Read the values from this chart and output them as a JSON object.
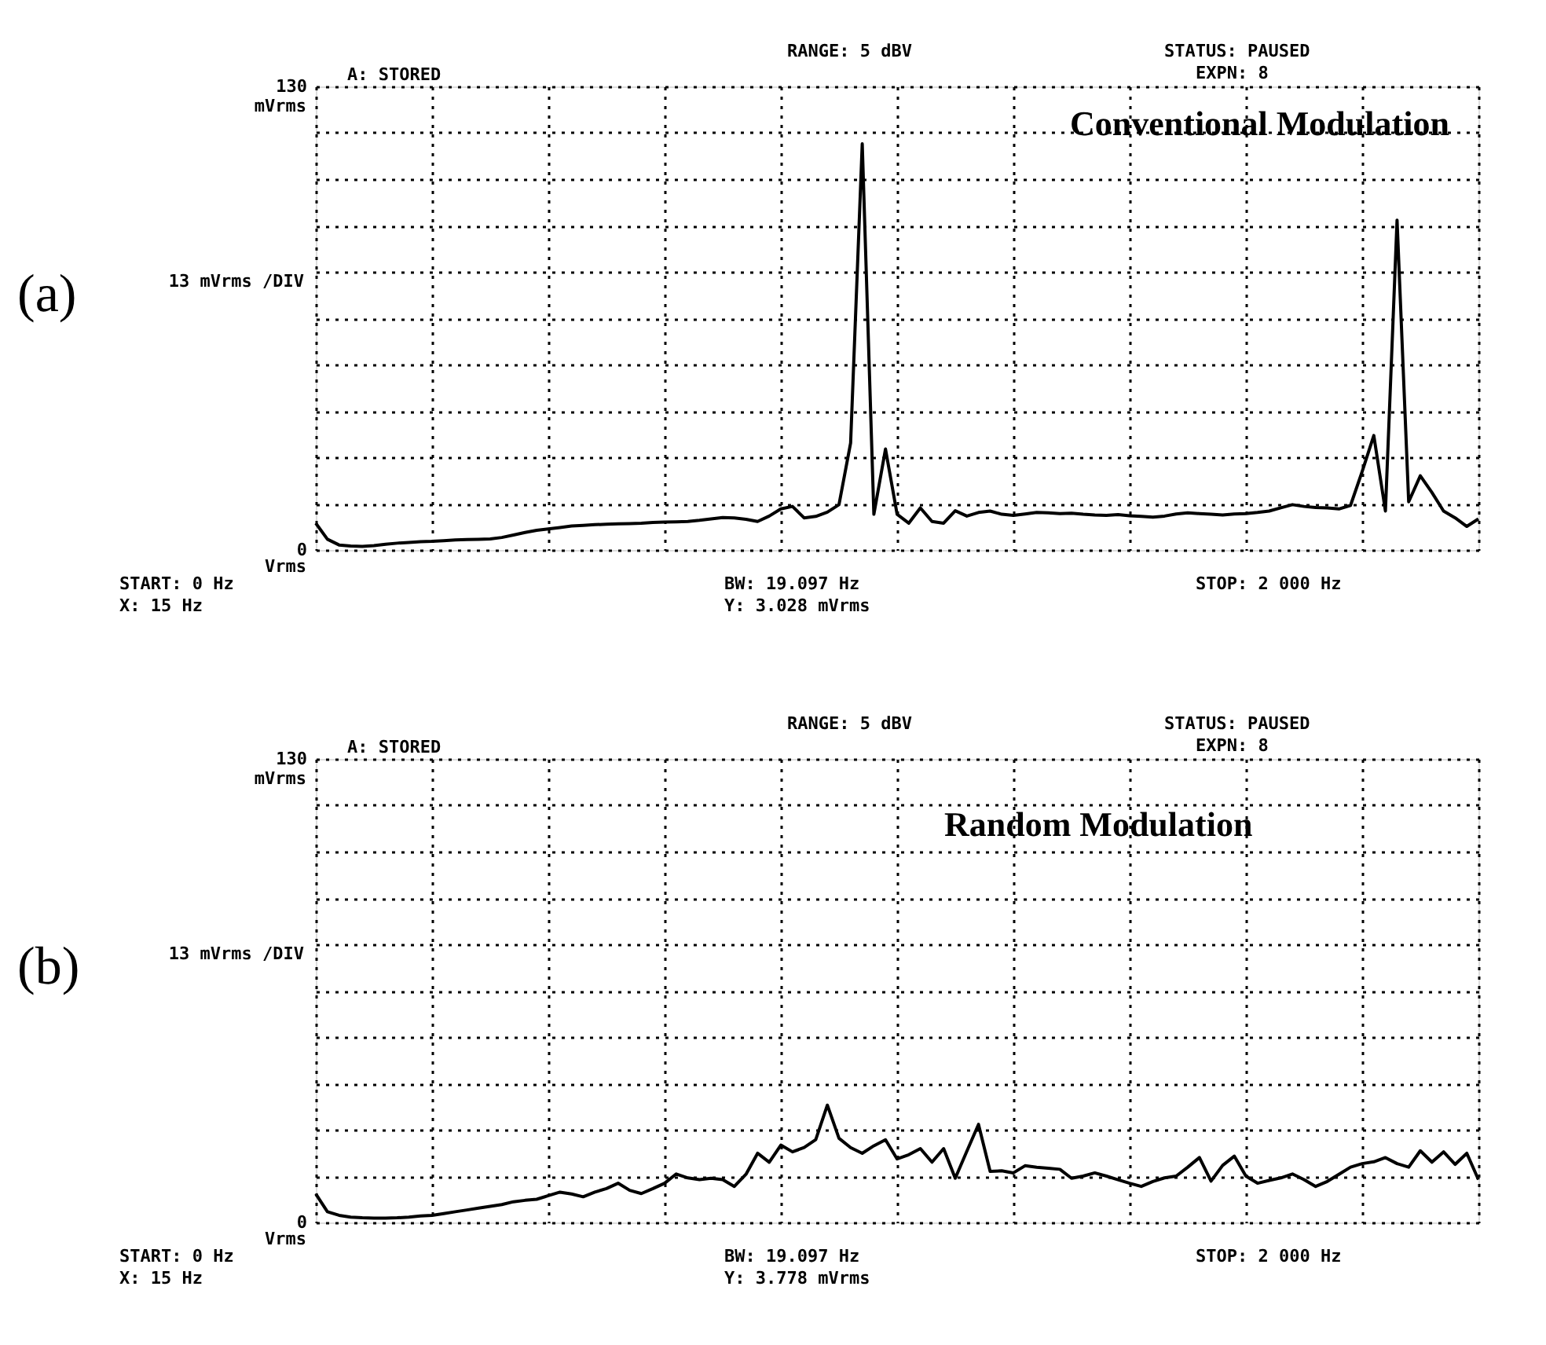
{
  "chart_data": [
    {
      "type": "line",
      "title": "Conventional Modulation",
      "ylabel": "13 mVrms /DIV",
      "annotations": [
        "(a)",
        "A: STORED",
        "RANGE: 5 dBV",
        "STATUS: PAUSED",
        "EXPN: 8",
        "START: 0 Hz",
        "BW: 19.097 Hz",
        "STOP: 2 000 Hz",
        "X: 15 Hz",
        "Y: 3.028 mVrms",
        "mVrms",
        "Vrms"
      ],
      "categories": [
        null,
        null,
        null,
        null,
        null,
        null,
        null,
        null,
        null,
        null,
        null,
        null,
        null,
        null,
        null,
        null,
        null,
        null,
        null,
        null,
        null,
        null,
        null,
        null,
        null,
        null,
        null,
        null,
        null,
        null,
        null,
        null,
        null,
        null,
        null,
        null,
        null,
        null,
        null,
        null,
        null,
        null,
        null,
        null,
        null,
        null,
        null,
        null,
        null,
        null,
        null,
        null,
        null,
        null,
        null,
        null,
        null,
        null,
        null,
        null,
        null,
        null,
        null,
        null,
        null,
        null,
        null,
        null,
        null,
        null,
        null,
        null,
        null,
        null,
        null,
        null,
        null,
        null,
        null,
        null,
        null,
        null,
        null,
        null,
        null,
        null,
        null,
        null,
        null,
        null,
        null,
        null,
        null,
        null,
        null,
        null,
        null,
        null,
        null,
        null,
        null
      ],
      "series": [
        {
          "color": "#000000",
          "values": [
            7.5,
            3,
            1.4,
            1.1,
            1.0,
            1.2,
            1.6,
            1.9,
            2.1,
            2.3,
            2.4,
            2.6,
            2.8,
            2.9,
            3.0,
            3.1,
            3.5,
            4.2,
            4.9,
            5.5,
            5.9,
            6.3,
            6.7,
            6.9,
            7.1,
            7.2,
            7.3,
            7.4,
            7.5,
            7.7,
            7.8,
            7.9,
            8.0,
            8.3,
            8.7,
            9.1,
            9.0,
            8.6,
            8.0,
            9.5,
            11.5,
            12.2,
            9.0,
            9.4,
            10.6,
            12.7,
            30,
            113.9,
            10,
            28.3,
            10,
            7.5,
            11.8,
            8.0,
            7.5,
            11.0,
            9.5,
            10.5,
            10.9,
            10.0,
            9.7,
            10.1,
            10.5,
            10.4,
            10.2,
            10.3,
            10.0,
            9.8,
            9.7,
            9.9,
            9.6,
            9.4,
            9.2,
            9.5,
            10.1,
            10.4,
            10.2,
            10.0,
            9.8,
            10.1,
            10.2,
            10.5,
            10.9,
            11.8,
            12.7,
            12.2,
            11.9,
            11.8,
            11.5,
            12.5,
            22,
            32.1,
            10.9,
            92.5,
            13.5,
            20.8,
            16.1,
            10.9,
            9.0,
            6.6,
            8.7
          ]
        }
      ],
      "ylim": [
        0,
        130
      ],
      "yticks": [
        {
          "value": 0,
          "label": "0"
        },
        {
          "value": 13,
          "label": null
        },
        {
          "value": 26,
          "label": null
        },
        {
          "value": 39,
          "label": null
        },
        {
          "value": 52,
          "label": null
        },
        {
          "value": 65,
          "label": null
        },
        {
          "value": 78,
          "label": null
        },
        {
          "value": 91,
          "label": null
        },
        {
          "value": 104,
          "label": null
        },
        {
          "value": 117,
          "label": null
        },
        {
          "value": 130,
          "label": "130"
        }
      ],
      "grid": true,
      "tick_labels": "y",
      "line_style": "solid"
    },
    {
      "type": "line",
      "title": "Random Modulation",
      "ylabel": "13 mVrms /DIV",
      "annotations": [
        "(b)",
        "A: STORED",
        "RANGE: 5 dBV",
        "STATUS: PAUSED",
        "EXPN: 8",
        "START: 0 Hz",
        "BW: 19.097 Hz",
        "STOP: 2 000 Hz",
        "X: 15 Hz",
        "Y: 3.778 mVrms",
        "mVrms",
        "Vrms"
      ],
      "categories": [
        null,
        null,
        null,
        null,
        null,
        null,
        null,
        null,
        null,
        null,
        null,
        null,
        null,
        null,
        null,
        null,
        null,
        null,
        null,
        null,
        null,
        null,
        null,
        null,
        null,
        null,
        null,
        null,
        null,
        null,
        null,
        null,
        null,
        null,
        null,
        null,
        null,
        null,
        null,
        null,
        null,
        null,
        null,
        null,
        null,
        null,
        null,
        null,
        null,
        null,
        null,
        null,
        null,
        null,
        null,
        null,
        null,
        null,
        null,
        null,
        null,
        null,
        null,
        null,
        null,
        null,
        null,
        null,
        null,
        null,
        null,
        null,
        null,
        null,
        null,
        null,
        null,
        null,
        null,
        null,
        null,
        null,
        null,
        null,
        null,
        null,
        null,
        null,
        null,
        null,
        null,
        null,
        null,
        null,
        null,
        null,
        null,
        null,
        null,
        null,
        null
      ],
      "series": [
        {
          "color": "#000000",
          "values": [
            8,
            3,
            2,
            1.5,
            1.3,
            1.2,
            1.2,
            1.3,
            1.5,
            1.8,
            2.0,
            2.5,
            3.0,
            3.5,
            4.0,
            4.5,
            5.0,
            5.8,
            6.2,
            6.5,
            7.5,
            8.5,
            8.0,
            7.2,
            8.5,
            9.5,
            11.0,
            9.0,
            8.1,
            9.5,
            11.0,
            13.6,
            12.5,
            12.0,
            12.4,
            12.0,
            10.1,
            13.5,
            19.4,
            16.9,
            21.7,
            19.8,
            21.0,
            23.2,
            32.9,
            23.6,
            21.0,
            19.4,
            21.5,
            23.2,
            17.8,
            19.0,
            20.7,
            16.9,
            20.7,
            12.4,
            20.0,
            27.5,
            14.3,
            14.5,
            13.9,
            15.9,
            15.5,
            15.2,
            14.9,
            12.4,
            13.0,
            13.9,
            13.0,
            12.0,
            11.0,
            10.1,
            11.5,
            12.5,
            13.0,
            15.5,
            18.2,
            11.6,
            16.0,
            18.6,
            13.0,
            11.0,
            11.8,
            12.5,
            13.6,
            12.0,
            10.1,
            11.5,
            13.5,
            15.5,
            16.5,
            17.0,
            18.2,
            16.5,
            15.5,
            20.1,
            16.9,
            19.8,
            16.3,
            19.4,
            12.0
          ]
        }
      ],
      "ylim": [
        0,
        130
      ],
      "yticks": [
        {
          "value": 0,
          "label": "0"
        },
        {
          "value": 13,
          "label": null
        },
        {
          "value": 26,
          "label": null
        },
        {
          "value": 39,
          "label": null
        },
        {
          "value": 52,
          "label": null
        },
        {
          "value": 65,
          "label": null
        },
        {
          "value": 78,
          "label": null
        },
        {
          "value": 91,
          "label": null
        },
        {
          "value": 104,
          "label": null
        },
        {
          "value": 117,
          "label": null
        },
        {
          "value": 130,
          "label": "130"
        }
      ],
      "grid": true,
      "tick_labels": "y",
      "line_style": "solid"
    }
  ]
}
